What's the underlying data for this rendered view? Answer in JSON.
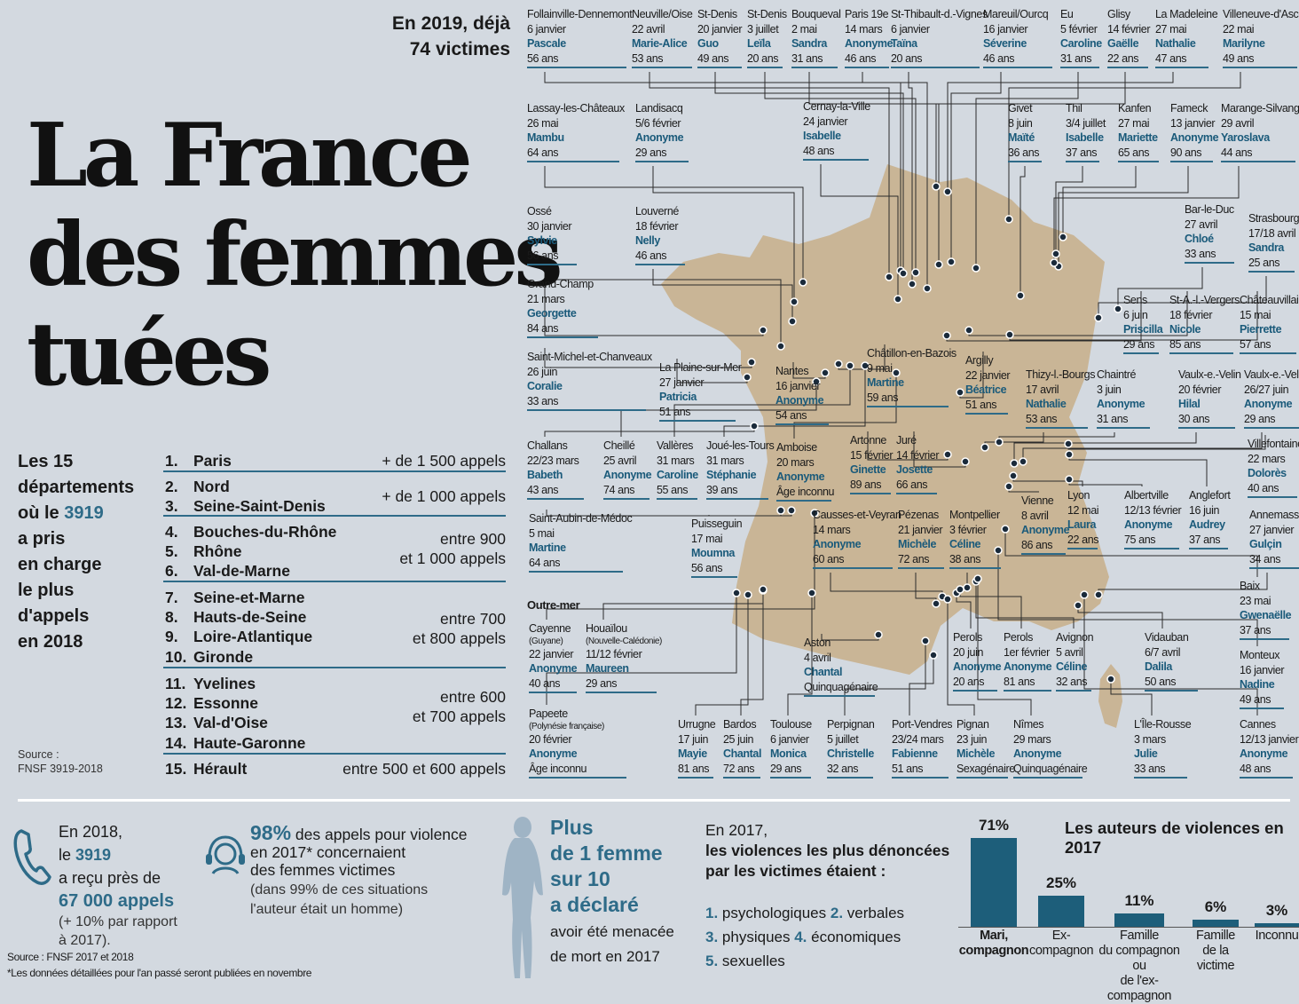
{
  "header": {
    "line1": "En 2019, déjà",
    "line2": "74 victimes"
  },
  "title": {
    "line1": "La France",
    "line2": "des femmes",
    "line3": "tuées"
  },
  "victims": [
    {
      "lines": [
        "Follainville-Dennemont",
        "6 janvier"
      ],
      "name": "Pascale",
      "age": "56 ans"
    },
    {
      "lines": [
        "Neuville/Oise",
        "22 avril"
      ],
      "name": "Marie-Alice",
      "age": "53 ans"
    },
    {
      "lines": [
        "St-Denis",
        "20 janvier"
      ],
      "name": "Guo",
      "age": "49 ans"
    },
    {
      "lines": [
        "St-Denis",
        "3 juillet"
      ],
      "name": "Leïla",
      "age": "20 ans"
    },
    {
      "lines": [
        "Bouqueval",
        "2 mai"
      ],
      "name": "Sandra",
      "age": "31 ans"
    },
    {
      "lines": [
        "Paris 19e",
        "14 mars"
      ],
      "name": "Anonyme",
      "age": "46 ans"
    },
    {
      "lines": [
        "St-Thibault-d.-Vignes",
        "6 janvier"
      ],
      "name": "Taïna",
      "age": "20 ans"
    },
    {
      "lines": [
        "Mareuil/Ourcq",
        "16 janvier"
      ],
      "name": "Séverine",
      "age": "46 ans"
    },
    {
      "lines": [
        "Eu",
        "5 février"
      ],
      "name": "Caroline",
      "age": "31 ans"
    },
    {
      "lines": [
        "Glisy",
        "14 février"
      ],
      "name": "Gaëlle",
      "age": "22 ans"
    },
    {
      "lines": [
        "La Madeleine",
        "27 mai"
      ],
      "name": "Nathalie",
      "age": "47 ans"
    },
    {
      "lines": [
        "Villeneuve-d'Ascq",
        "22 mai"
      ],
      "name": "Marilyne",
      "age": "49 ans"
    },
    {
      "lines": [
        "Lassay-les-Châteaux",
        "26 mai"
      ],
      "name": "Mambu",
      "age": "64 ans"
    },
    {
      "lines": [
        "Landisacq",
        "5/6 février"
      ],
      "name": "Anonyme",
      "age": "29 ans"
    },
    {
      "lines": [
        "Cernay-la-Ville",
        "24 janvier"
      ],
      "name": "Isabelle",
      "age": "48 ans"
    },
    {
      "lines": [
        "Givet",
        "8 juin"
      ],
      "name": "Maïté",
      "age": "36 ans"
    },
    {
      "lines": [
        "Thil",
        "3/4 juillet"
      ],
      "name": "Isabelle",
      "age": "37 ans"
    },
    {
      "lines": [
        "Kanfen",
        "27 mai"
      ],
      "name": "Mariette",
      "age": "65 ans"
    },
    {
      "lines": [
        "Fameck",
        "13 janvier"
      ],
      "name": "Anonyme",
      "age": "90 ans"
    },
    {
      "lines": [
        "Marange-Silvange",
        "29 avril"
      ],
      "name": "Yaroslava",
      "age": "44 ans"
    },
    {
      "lines": [
        "Ossé",
        "30 janvier"
      ],
      "name": "Sylvie",
      "age": "56 ans"
    },
    {
      "lines": [
        "Louverné",
        "18 février"
      ],
      "name": "Nelly",
      "age": "46 ans"
    },
    {
      "lines": [
        "Bar-le-Duc",
        "27 avril"
      ],
      "name": "Chloé",
      "age": "33 ans"
    },
    {
      "lines": [
        "Strasbourg",
        "17/18 avril"
      ],
      "name": "Sandra",
      "age": "25 ans"
    },
    {
      "lines": [
        "Grand-Champ",
        "21 mars"
      ],
      "name": "Georgette",
      "age": "84 ans"
    },
    {
      "lines": [
        "Sens",
        "6 juin"
      ],
      "name": "Priscilla",
      "age": "29 ans"
    },
    {
      "lines": [
        "St-A.-l.-Vergers",
        "18 février"
      ],
      "name": "Nicole",
      "age": "85 ans"
    },
    {
      "lines": [
        "Châteauvillain",
        "15 mai"
      ],
      "name": "Pierrette",
      "age": "57 ans"
    },
    {
      "lines": [
        "Saint-Michel-et-Chanveaux",
        "26 juin"
      ],
      "name": "Coralie",
      "age": "33 ans"
    },
    {
      "lines": [
        "La Plaine-sur-Mer",
        "27 janvier"
      ],
      "name": "Patricia",
      "age": "51 ans"
    },
    {
      "lines": [
        "Nantes",
        "16 janvier"
      ],
      "name": "Anonyme",
      "age": "54 ans"
    },
    {
      "lines": [
        "Châtillon-en-Bazois",
        "9 mai"
      ],
      "name": "Martine",
      "age": "59 ans"
    },
    {
      "lines": [
        "Argilly",
        "22 janvier"
      ],
      "name": "Béatrice",
      "age": "51 ans"
    },
    {
      "lines": [
        "Thizy-l.-Bourgs",
        "17 avril"
      ],
      "name": "Nathalie",
      "age": "53 ans"
    },
    {
      "lines": [
        "Chaintré",
        "3 juin"
      ],
      "name": "Anonyme",
      "age": "31 ans"
    },
    {
      "lines": [
        "Vaulx-e.-Velin",
        "20 février"
      ],
      "name": "Hilal",
      "age": "30 ans"
    },
    {
      "lines": [
        "Vaulx-e.-Velin",
        "26/27 juin"
      ],
      "name": "Anonyme",
      "age": "29 ans"
    },
    {
      "lines": [
        "Challans",
        "22/23 mars"
      ],
      "name": "Babeth",
      "age": "43 ans"
    },
    {
      "lines": [
        "Cheillé",
        "25 avril"
      ],
      "name": "Anonyme",
      "age": "74 ans"
    },
    {
      "lines": [
        "Vallères",
        "31 mars"
      ],
      "name": "Caroline",
      "age": "55 ans"
    },
    {
      "lines": [
        "Joué-les-Tours",
        "31 mars"
      ],
      "name": "Stéphanie",
      "age": "39 ans"
    },
    {
      "lines": [
        "Amboise",
        "20 mars"
      ],
      "name": "Anonyme",
      "age": "Âge inconnu"
    },
    {
      "lines": [
        "Artonne",
        "15 février"
      ],
      "name": "Ginette",
      "age": "89 ans"
    },
    {
      "lines": [
        "Juré",
        "14 février"
      ],
      "name": "Josette",
      "age": "66 ans"
    },
    {
      "lines": [
        "Villefontaine",
        "22 mars"
      ],
      "name": "Dolorès",
      "age": "40 ans"
    },
    {
      "lines": [
        "Saint-Aubin-de-Médoc",
        "5 mai"
      ],
      "name": "Martine",
      "age": "64 ans"
    },
    {
      "lines": [
        "Puisseguin",
        "17 mai"
      ],
      "name": "Moumna",
      "age": "56 ans"
    },
    {
      "lines": [
        "Causses-et-Veyran",
        "14 mars"
      ],
      "name": "Anonyme",
      "age": "60 ans"
    },
    {
      "lines": [
        "Pézenas",
        "21 janvier"
      ],
      "name": "Michèle",
      "age": "72 ans"
    },
    {
      "lines": [
        "Montpellier",
        "3 février"
      ],
      "name": "Céline",
      "age": "38 ans"
    },
    {
      "lines": [
        "Vienne",
        "8 avril"
      ],
      "name": "Anonyme",
      "age": "86 ans"
    },
    {
      "lines": [
        "Lyon",
        "12 mai"
      ],
      "name": "Laura",
      "age": "22 ans"
    },
    {
      "lines": [
        "Albertville",
        "12/13 février"
      ],
      "name": "Anonyme",
      "age": "75 ans"
    },
    {
      "lines": [
        "Anglefort",
        "16 juin"
      ],
      "name": "Audrey",
      "age": "37 ans"
    },
    {
      "lines": [
        "Annemasse",
        "27 janvier"
      ],
      "name": "Gulçin",
      "age": "34 ans"
    },
    {
      "lines": [
        "Cayenne",
        "(Guyane)",
        "22 janvier"
      ],
      "name": "Anonyme",
      "age": "40 ans"
    },
    {
      "lines": [
        "Houaïlou",
        "(Nouvelle-Calédonie)",
        "11/12 février"
      ],
      "name": "Maureen",
      "age": "29 ans"
    },
    {
      "lines": [
        "Aston",
        "4 avril"
      ],
      "name": "Chantal",
      "age": "Quinquagénaire"
    },
    {
      "lines": [
        "Perols",
        "20 juin"
      ],
      "name": "Anonyme",
      "age": "20 ans"
    },
    {
      "lines": [
        "Perols",
        "1er février"
      ],
      "name": "Anonyme",
      "age": "81 ans"
    },
    {
      "lines": [
        "Avignon",
        "5 avril"
      ],
      "name": "Céline",
      "age": "32 ans"
    },
    {
      "lines": [
        "Vidauban",
        "6/7 avril"
      ],
      "name": "Dalila",
      "age": "50 ans"
    },
    {
      "lines": [
        "Baix",
        "23 mai"
      ],
      "name": "Gwenaëlle",
      "age": "37 ans"
    },
    {
      "lines": [
        "Monteux",
        "16 janvier"
      ],
      "name": "Nadine",
      "age": "49 ans"
    },
    {
      "lines": [
        "Papeete",
        "(Polynésie française)",
        "20 février"
      ],
      "name": "Anonyme",
      "age": "Âge inconnu"
    },
    {
      "lines": [
        "Urrugne",
        "17 juin"
      ],
      "name": "Mayie",
      "age": "81 ans"
    },
    {
      "lines": [
        "Bardos",
        "25 juin"
      ],
      "name": "Chantal",
      "age": "72 ans"
    },
    {
      "lines": [
        "Toulouse",
        "6 janvier"
      ],
      "name": "Monica",
      "age": "29 ans"
    },
    {
      "lines": [
        "Perpignan",
        "5 juillet"
      ],
      "name": "Christelle",
      "age": "32 ans"
    },
    {
      "lines": [
        "Port-Vendres",
        "23/24 mars"
      ],
      "name": "Fabienne",
      "age": "51 ans"
    },
    {
      "lines": [
        "Pignan",
        "23 juin"
      ],
      "name": "Michèle",
      "age": "Sexagénaire"
    },
    {
      "lines": [
        "Nîmes",
        "29 mars"
      ],
      "name": "Anonyme",
      "age": "Quinquagénaire"
    },
    {
      "lines": [
        "L'Île-Rousse",
        "3 mars"
      ],
      "name": "Julie",
      "age": "33 ans"
    },
    {
      "lines": [
        "Cannes",
        "12/13 janvier"
      ],
      "name": "Anonyme",
      "age": "48 ans"
    }
  ],
  "outremer": "Outre-mer",
  "departements": {
    "title": [
      "Les 15",
      "départements",
      "où le ",
      "3919",
      "a pris",
      "en charge",
      "le plus",
      "d'appels",
      "en 2018"
    ],
    "source": [
      "Source :",
      "FNSF 3919-2018"
    ],
    "rows": [
      {
        "n": "1.",
        "name": "Paris"
      },
      {
        "n": "2.",
        "name": "Nord"
      },
      {
        "n": "3.",
        "name": "Seine-Saint-Denis"
      },
      {
        "n": "4.",
        "name": "Bouches-du-Rhône"
      },
      {
        "n": "5.",
        "name": "Rhône"
      },
      {
        "n": "6.",
        "name": "Val-de-Marne"
      },
      {
        "n": "7.",
        "name": "Seine-et-Marne"
      },
      {
        "n": "8.",
        "name": "Hauts-de-Seine"
      },
      {
        "n": "9.",
        "name": "Loire-Atlantique"
      },
      {
        "n": "10.",
        "name": "Gironde"
      },
      {
        "n": "11.",
        "name": "Yvelines"
      },
      {
        "n": "12.",
        "name": "Essonne"
      },
      {
        "n": "13.",
        "name": "Val-d'Oise"
      },
      {
        "n": "14.",
        "name": "Haute-Garonne"
      },
      {
        "n": "15.",
        "name": "Hérault"
      }
    ],
    "ranges": [
      "+ de 1 500 appels",
      "+ de 1 000 appels",
      "entre 900",
      "et 1 000 appels",
      "entre 700",
      "et 800 appels",
      "entre 600",
      "et 700 appels",
      "entre 500 et 600 appels"
    ]
  },
  "stats": {
    "calls": {
      "l1": "En 2018,",
      "l2a": "le ",
      "l2b": "3919",
      "l3": "a reçu près de",
      "l4": "67 000 appels",
      "l5": "(+ 10% par rapport",
      "l6": "à 2017)."
    },
    "pct": {
      "big": "98%",
      "a": " des appels pour violence",
      "b": "en 2017* concernaient",
      "c": "des femmes victimes",
      "d": "(dans 99% de ces situations",
      "e": "l'auteur était un homme)"
    },
    "woman": {
      "a": "Plus",
      "b": "de 1 femme",
      "c": "sur 10",
      "d": "a déclaré",
      "e": "avoir été menacée",
      "f": "de mort en 2017"
    },
    "violences": {
      "l1": "En 2017,",
      "l2": "les violences les plus dénoncées",
      "l3": "par les victimes étaient :",
      "items": [
        [
          "1.",
          "psychologiques"
        ],
        [
          "2.",
          "verbales"
        ],
        [
          "3.",
          "physiques"
        ],
        [
          "4.",
          "économiques"
        ],
        [
          "5.",
          "sexuelles"
        ]
      ]
    },
    "source": "Source : FNSF 2017 et 2018",
    "note": "*Les données détaillées pour l'an passé seront publiées en novembre"
  },
  "chart_data": {
    "type": "bar",
    "title": "Les auteurs de violences en 2017",
    "categories": [
      "Mari, compagnon",
      "Ex-compagnon",
      "Famille du compagnon ou de l'ex-compagnon",
      "Famille de la victime",
      "Inconnu"
    ],
    "values": [
      71,
      25,
      11,
      6,
      3
    ],
    "labels": [
      "71%",
      "25%",
      "11%",
      "6%",
      "3%"
    ],
    "unit": "%",
    "ylim": [
      0,
      71
    ],
    "colors": {
      "bar": "#1d5e7a"
    }
  },
  "colors": {
    "accent": "#2e6b88",
    "map": "#c9b596",
    "bg": "#d3d9e0"
  }
}
